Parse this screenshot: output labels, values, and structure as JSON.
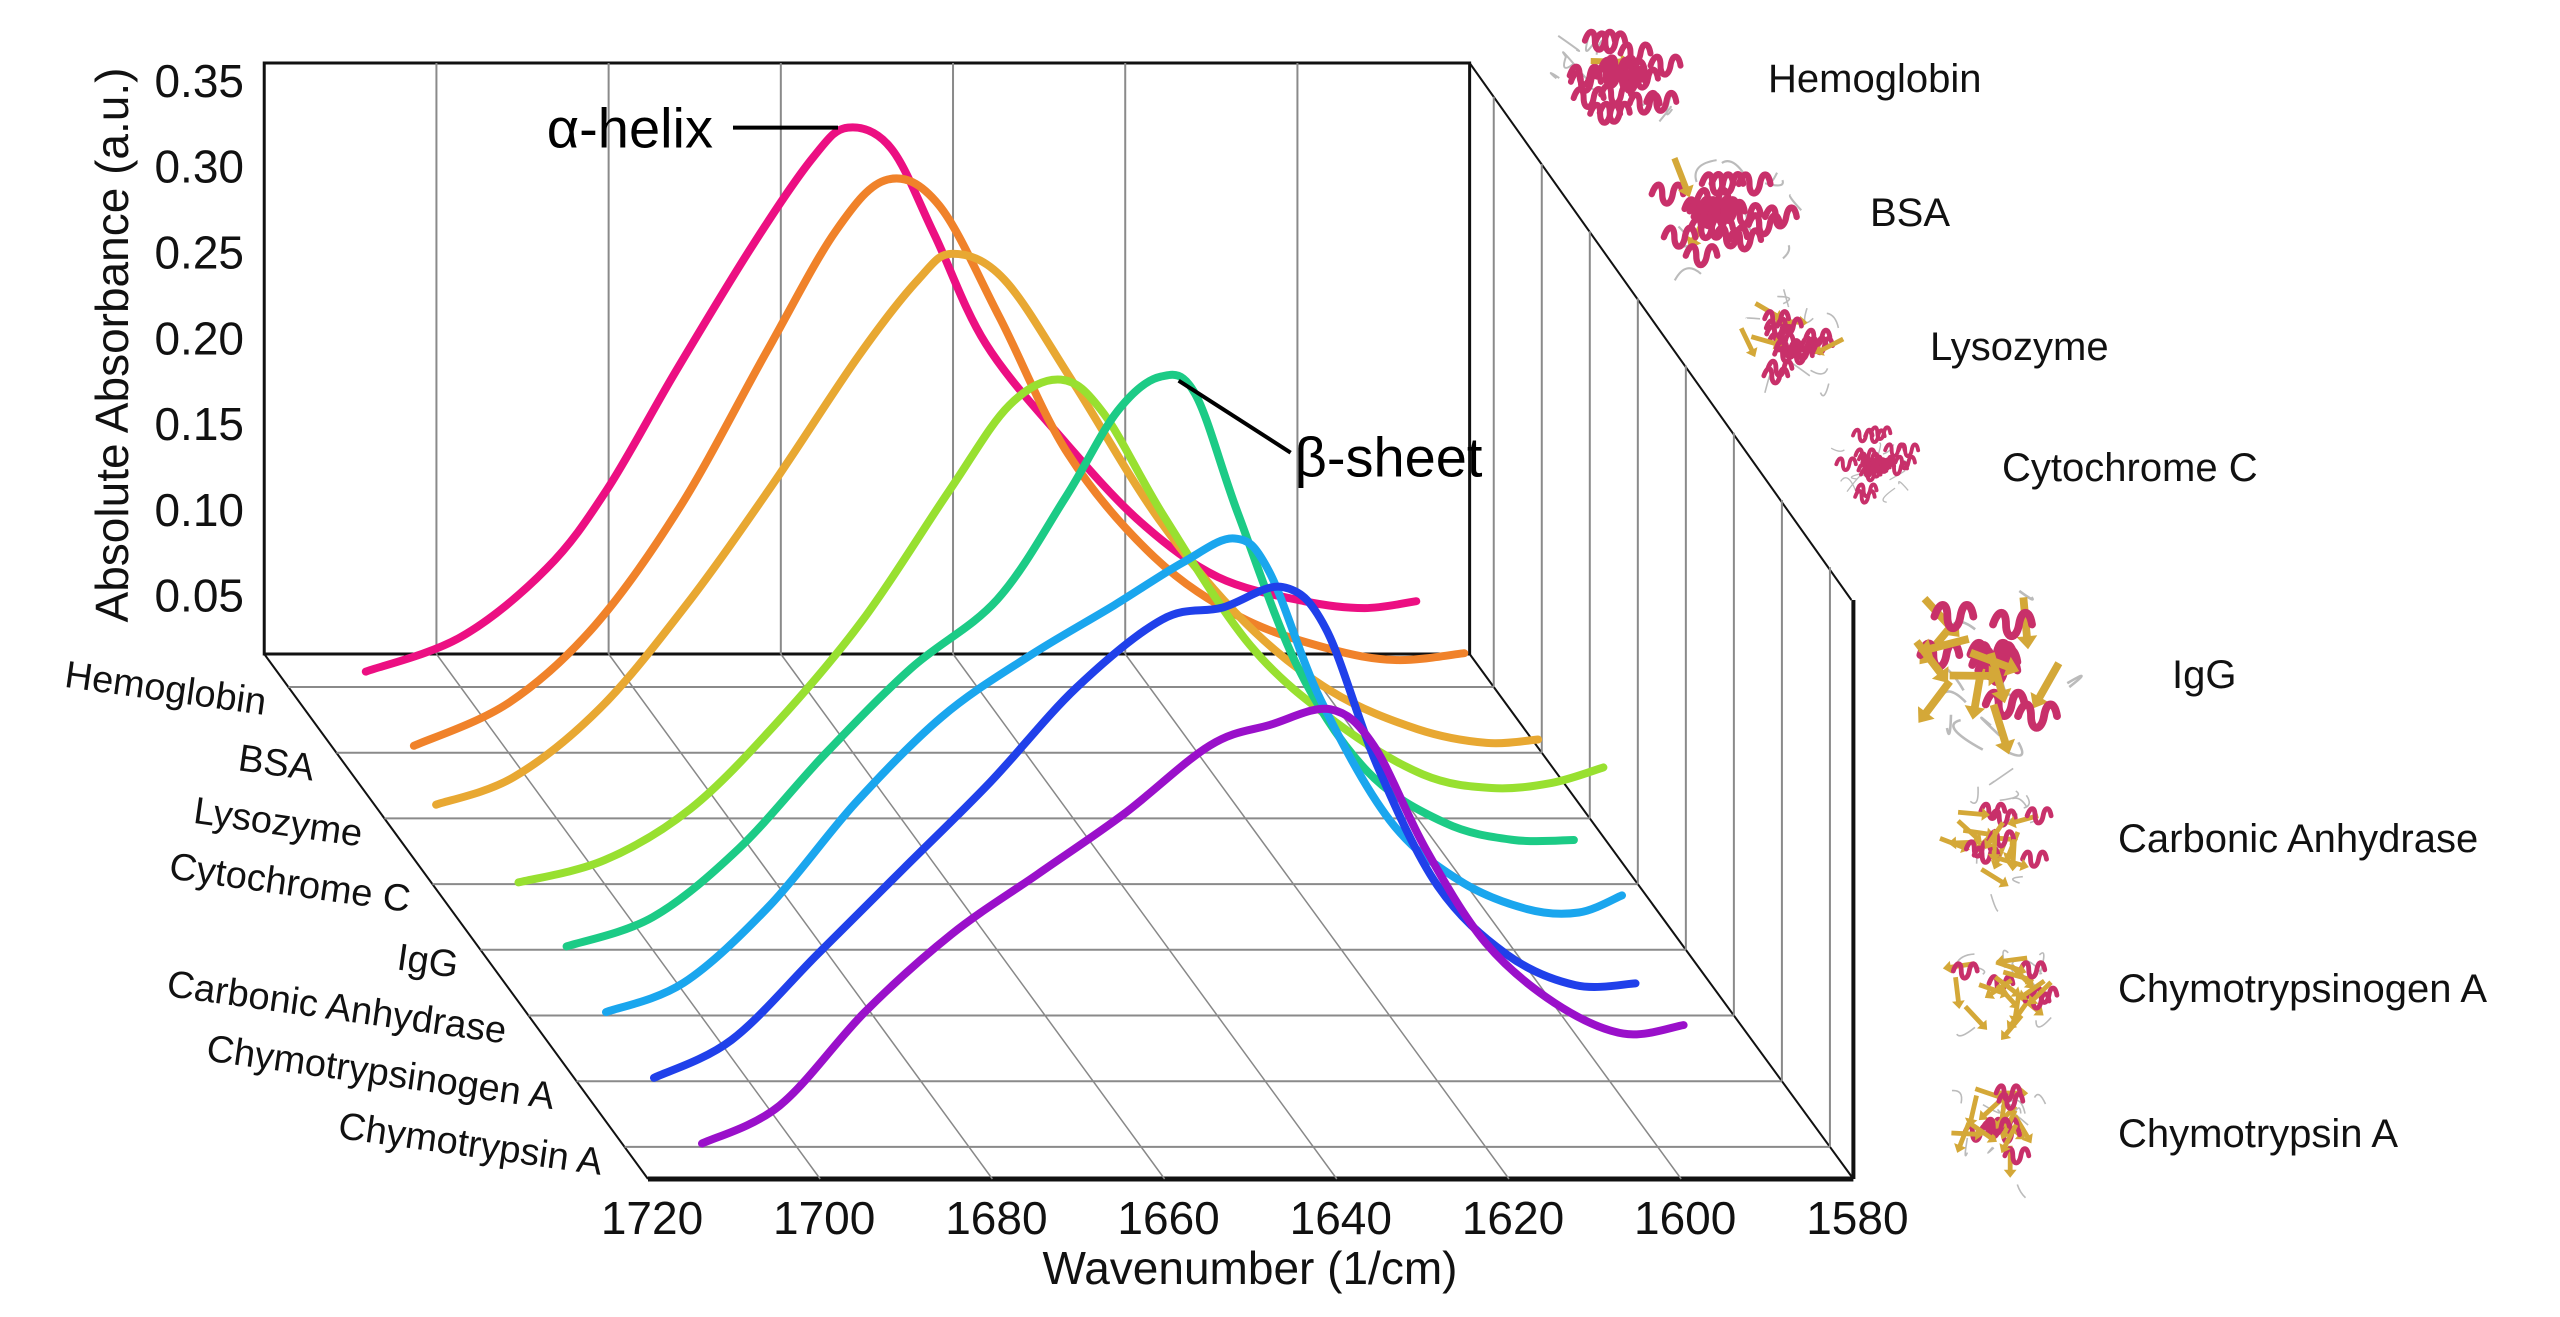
{
  "chart_data": {
    "type": "line",
    "subtype": "3d-waterfall",
    "title": "",
    "xlabel": "Wavenumber (1/cm)",
    "ylabel": "Absolute Absorbance (a.u.)",
    "x_ticks": [
      1720,
      1700,
      1680,
      1660,
      1640,
      1620,
      1600,
      1580
    ],
    "y_ticks": [
      "0.05",
      "0.10",
      "0.15",
      "0.20",
      "0.25",
      "0.30",
      "0.35"
    ],
    "y_tick_values": [
      0.05,
      0.1,
      0.15,
      0.2,
      0.25,
      0.3,
      0.35
    ],
    "xlim": [
      1720,
      1580
    ],
    "ylim": [
      0.016,
      0.35
    ],
    "grid": true,
    "annotations": [
      {
        "text": "α-helix",
        "series": "Hemoglobin",
        "x": 1655,
        "y": 0.342
      },
      {
        "text": "β-sheet",
        "series": "IgG",
        "x": 1641,
        "y": 0.35
      }
    ],
    "series": [
      {
        "name": "Hemoglobin",
        "color": "#EC0F82",
        "x": [
          1711,
          1700,
          1690,
          1683,
          1675,
          1666,
          1659,
          1655,
          1650,
          1645,
          1639,
          1630,
          1621,
          1612,
          1602,
          1595,
          1589
        ],
        "y": [
          0.025,
          0.045,
          0.085,
          0.131,
          0.2,
          0.274,
          0.325,
          0.342,
          0.33,
          0.28,
          0.216,
          0.16,
          0.112,
          0.08,
          0.066,
          0.062,
          0.066
        ]
      },
      {
        "name": "BSA",
        "color": "#F0822A",
        "x": [
          1711,
          1700,
          1690,
          1680,
          1670,
          1662,
          1656,
          1650,
          1643,
          1635,
          1625,
          1615,
          1605,
          1597,
          1589
        ],
        "y": [
          0.02,
          0.045,
          0.09,
          0.16,
          0.25,
          0.32,
          0.35,
          0.335,
          0.27,
          0.19,
          0.13,
          0.095,
          0.077,
          0.07,
          0.074
        ]
      },
      {
        "name": "Lysozyme",
        "color": "#E8A832",
        "x": [
          1714,
          1705,
          1695,
          1685,
          1675,
          1665,
          1658,
          1654,
          1648,
          1640,
          1630,
          1620,
          1610,
          1600,
          1592,
          1586
        ],
        "y": [
          0.024,
          0.04,
          0.08,
          0.14,
          0.21,
          0.285,
          0.33,
          0.345,
          0.33,
          0.27,
          0.19,
          0.13,
          0.09,
          0.068,
          0.06,
          0.062
        ]
      },
      {
        "name": "Cytochrome C",
        "color": "#98E030",
        "x": [
          1710,
          1700,
          1690,
          1680,
          1670,
          1660,
          1653,
          1647,
          1642,
          1635,
          1625,
          1615,
          1605,
          1597,
          1590,
          1584
        ],
        "y": [
          0.017,
          0.03,
          0.06,
          0.11,
          0.17,
          0.245,
          0.295,
          0.31,
          0.29,
          0.23,
          0.155,
          0.11,
          0.08,
          0.072,
          0.075,
          0.084
        ]
      },
      {
        "name": "IgG",
        "color": "#1CCB86",
        "x": [
          1710,
          1700,
          1690,
          1680,
          1670,
          1660,
          1652,
          1646,
          1641,
          1637,
          1632,
          1625,
          1617,
          1608,
          1600,
          1593
        ],
        "y": [
          0.018,
          0.035,
          0.075,
          0.13,
          0.18,
          0.22,
          0.28,
          0.33,
          0.35,
          0.34,
          0.27,
          0.18,
          0.12,
          0.09,
          0.08,
          0.08
        ]
      },
      {
        "name": "Carbonic Anhydrase",
        "color": "#1AA6EE",
        "x": [
          1711,
          1702,
          1692,
          1682,
          1672,
          1662,
          1652,
          1644,
          1638,
          1634,
          1628,
          1620,
          1612,
          1604,
          1598,
          1593
        ],
        "y": [
          0.018,
          0.035,
          0.08,
          0.14,
          0.19,
          0.225,
          0.255,
          0.28,
          0.294,
          0.275,
          0.2,
          0.13,
          0.095,
          0.078,
          0.076,
          0.086
        ]
      },
      {
        "name": "Chymotrypsinogen A",
        "color": "#2040EA",
        "x": [
          1711,
          1702,
          1692,
          1682,
          1672,
          1662,
          1652,
          1645,
          1638,
          1633,
          1627,
          1620,
          1612,
          1604,
          1597
        ],
        "y": [
          0.018,
          0.04,
          0.09,
          0.14,
          0.19,
          0.245,
          0.285,
          0.292,
          0.304,
          0.28,
          0.2,
          0.13,
          0.09,
          0.072,
          0.073
        ]
      },
      {
        "name": "Chymotrypsin A",
        "color": "#9A10CA",
        "x": [
          1711,
          1702,
          1692,
          1682,
          1672,
          1662,
          1652,
          1645,
          1638,
          1633,
          1627,
          1620,
          1612,
          1604,
          1597
        ],
        "y": [
          0.018,
          0.04,
          0.095,
          0.14,
          0.175,
          0.21,
          0.25,
          0.262,
          0.271,
          0.25,
          0.19,
          0.135,
          0.1,
          0.082,
          0.087
        ]
      }
    ]
  },
  "row_labels": [
    "Hemoglobin",
    "BSA",
    "Lysozyme",
    "Cytochrome C",
    "IgG",
    "Carbonic Anhydrase",
    "Chymotrypsinogen A",
    "Chymotrypsin A"
  ],
  "protein_legend": [
    {
      "label": "Hemoglobin",
      "icon": "protein-structure-helical"
    },
    {
      "label": "BSA",
      "icon": "protein-structure-helical"
    },
    {
      "label": "Lysozyme",
      "icon": "protein-structure-mixed"
    },
    {
      "label": "Cytochrome C",
      "icon": "protein-structure-helical"
    },
    {
      "label": "IgG",
      "icon": "protein-structure-sheet"
    },
    {
      "label": "Carbonic Anhydrase",
      "icon": "protein-structure-sheet"
    },
    {
      "label": "Chymotrypsinogen A",
      "icon": "protein-structure-sheet"
    },
    {
      "label": "Chymotrypsin A",
      "icon": "protein-structure-sheet"
    }
  ],
  "colors": {
    "helix": "#C8306A",
    "sheet": "#D4A838",
    "coil": "#BBBBBB"
  }
}
